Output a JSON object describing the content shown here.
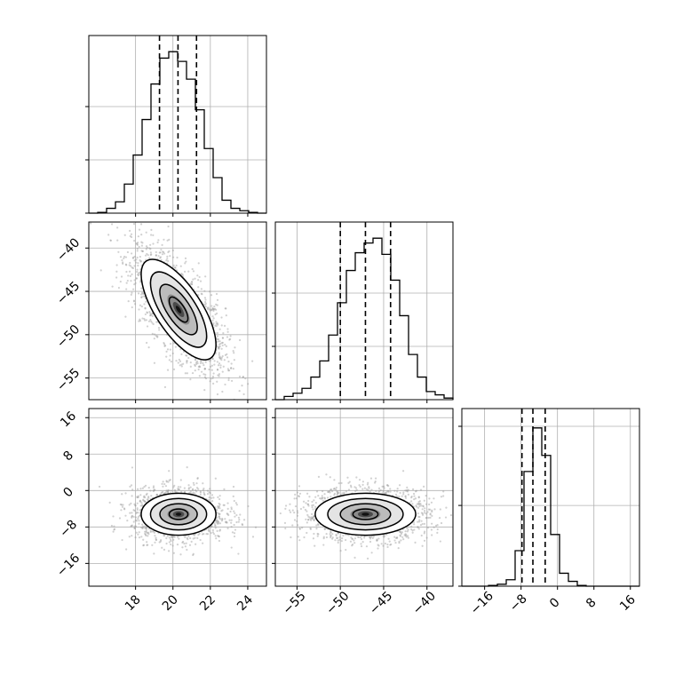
{
  "chart_data": {
    "type": "corner",
    "grid": true,
    "parameters": [
      {
        "range": [
          15.5,
          25.0
        ],
        "ticks": [
          18,
          20,
          22,
          24
        ],
        "tick_labels": [
          "18",
          "20",
          "22",
          "24"
        ]
      },
      {
        "range": [
          -57.5,
          -37.0
        ],
        "ticks": [
          -55,
          -50,
          -45,
          -40
        ],
        "tick_labels": [
          "−55",
          "−50",
          "−45",
          "−40"
        ]
      },
      {
        "range": [
          -21.0,
          18.0
        ],
        "ticks": [
          -16,
          -8,
          0,
          8,
          16
        ],
        "tick_labels": [
          "−16",
          "−8",
          "0",
          "8",
          "16"
        ]
      }
    ],
    "quantiles": [
      [
        19.28,
        20.27,
        21.26
      ],
      [
        -50.0,
        -47.1,
        -44.2
      ],
      [
        -7.8,
        -5.4,
        -2.7
      ]
    ],
    "histograms": [
      {
        "param": 0,
        "ymax": 1.0,
        "y_tick_fracs": [
          0.0,
          0.33,
          0.66
        ],
        "edges": [
          15.5,
          15.975,
          16.45,
          16.925,
          17.4,
          17.875,
          18.35,
          18.825,
          19.3,
          19.775,
          20.25,
          20.725,
          21.2,
          21.675,
          22.15,
          22.625,
          23.1,
          23.575,
          24.05,
          24.525,
          25.0
        ],
        "counts": [
          0.0,
          0.005,
          0.03,
          0.07,
          0.18,
          0.36,
          0.58,
          0.8,
          0.96,
          1.0,
          0.94,
          0.83,
          0.64,
          0.4,
          0.22,
          0.08,
          0.03,
          0.015,
          0.005,
          0.0
        ]
      },
      {
        "param": 1,
        "ymax": 1.0,
        "y_tick_fracs": [
          0.0,
          0.33,
          0.66
        ],
        "edges": [
          -57.5,
          -56.475,
          -55.45,
          -54.425,
          -53.4,
          -52.375,
          -51.35,
          -50.325,
          -49.3,
          -48.275,
          -47.25,
          -46.225,
          -45.2,
          -44.175,
          -43.15,
          -42.125,
          -41.1,
          -40.075,
          -39.05,
          -38.025,
          -37.0
        ],
        "counts": [
          0.0,
          0.02,
          0.04,
          0.07,
          0.14,
          0.24,
          0.4,
          0.6,
          0.8,
          0.91,
          0.97,
          1.0,
          0.9,
          0.74,
          0.52,
          0.28,
          0.14,
          0.05,
          0.03,
          0.01
        ]
      },
      {
        "param": 2,
        "ymax": 1.0,
        "y_tick_fracs": [
          0.0,
          0.5,
          0.99
        ],
        "edges": [
          -21.0,
          -19.05,
          -17.1,
          -15.15,
          -13.2,
          -11.25,
          -9.3,
          -7.35,
          -5.4,
          -3.45,
          -1.5,
          0.45,
          2.4,
          4.35,
          6.3,
          8.25,
          10.2,
          12.15,
          14.1,
          16.05,
          18.0
        ],
        "counts": [
          0.0,
          0.0,
          0.0,
          0.005,
          0.012,
          0.04,
          0.22,
          0.71,
          0.98,
          0.81,
          0.32,
          0.08,
          0.03,
          0.005,
          0.0,
          0.0,
          0.0,
          0.0,
          0.0,
          0.0
        ]
      }
    ],
    "contours": [
      {
        "x_param": 0,
        "y_param": 1,
        "center": [
          20.3,
          -47.1
        ],
        "sd": [
          1.0,
          2.9
        ],
        "corr": -0.7,
        "levels_sigma": [
          0.5,
          1.0,
          1.5,
          2.0
        ],
        "grayscale_cells": true,
        "n_scatter": 1800
      },
      {
        "x_param": 0,
        "y_param": 2,
        "center": [
          20.3,
          -5.2
        ],
        "sd": [
          1.0,
          2.3
        ],
        "corr": 0.0,
        "levels_sigma": [
          0.5,
          1.0,
          1.5,
          2.0
        ],
        "grayscale_cells": true,
        "n_scatter": 1600
      },
      {
        "x_param": 1,
        "y_param": 2,
        "center": [
          -47.1,
          -5.2
        ],
        "sd": [
          2.9,
          2.3
        ],
        "corr": 0.0,
        "levels_sigma": [
          0.5,
          1.0,
          1.5,
          2.0
        ],
        "grayscale_cells": true,
        "n_scatter": 1600
      }
    ]
  }
}
